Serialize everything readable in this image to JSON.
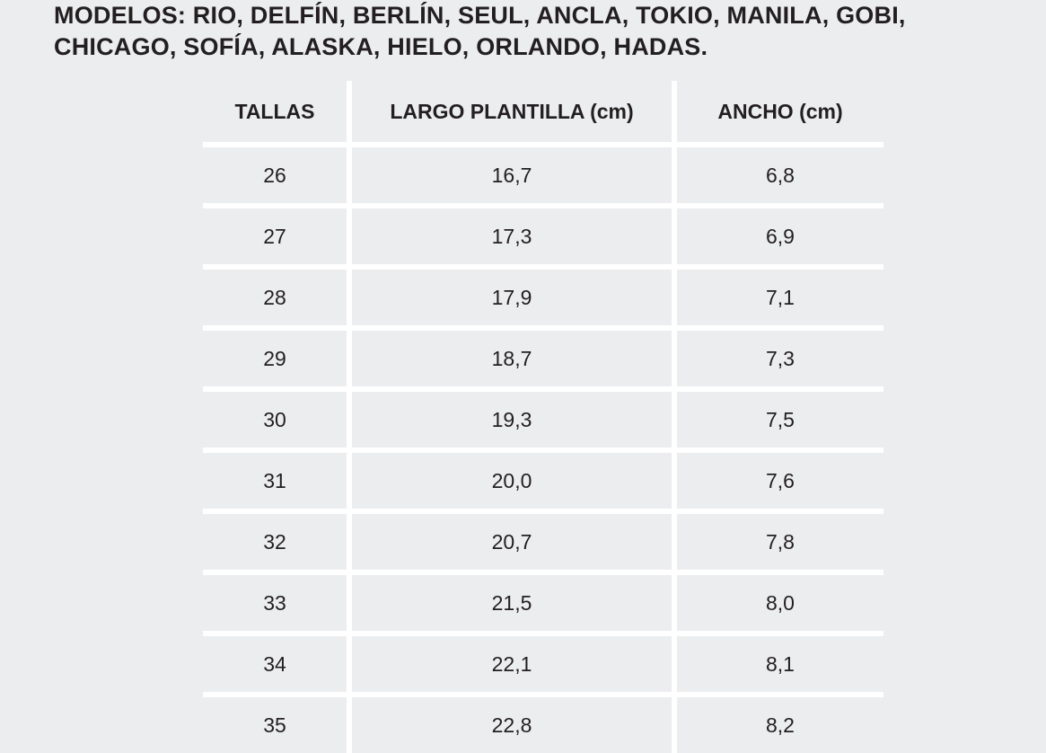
{
  "page_title": "MODELOS: RIO, DELFÍN, BERLÍN, SEUL, ANCLA, TOKIO, MANILA, GOBI, CHICAGO, SOFÍA, ALASKA, HIELO, ORLANDO, HADAS.",
  "table": {
    "headers": [
      "TALLAS",
      "LARGO PLANTILLA (cm)",
      "ANCHO (cm)"
    ],
    "rows": [
      [
        "26",
        "16,7",
        "6,8"
      ],
      [
        "27",
        "17,3",
        "6,9"
      ],
      [
        "28",
        "17,9",
        "7,1"
      ],
      [
        "29",
        "18,7",
        "7,3"
      ],
      [
        "30",
        "19,3",
        "7,5"
      ],
      [
        "31",
        "20,0",
        "7,6"
      ],
      [
        "32",
        "20,7",
        "7,8"
      ],
      [
        "33",
        "21,5",
        "8,0"
      ],
      [
        "34",
        "22,1",
        "8,1"
      ],
      [
        "35",
        "22,8",
        "8,2"
      ]
    ]
  },
  "colors": {
    "page_background": "#ECEDEF",
    "separator": "#FFFFFF",
    "text": "#231F20"
  }
}
